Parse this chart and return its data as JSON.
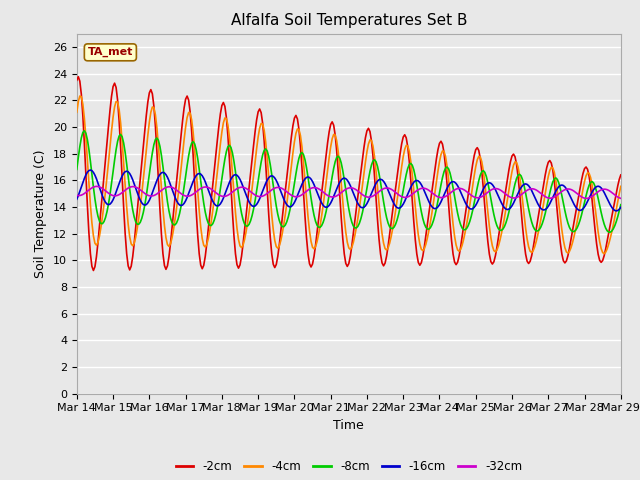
{
  "title": "Alfalfa Soil Temperatures Set B",
  "xlabel": "Time",
  "ylabel": "Soil Temperature (C)",
  "ylim": [
    0,
    27
  ],
  "yticks": [
    0,
    2,
    4,
    6,
    8,
    10,
    12,
    14,
    16,
    18,
    20,
    22,
    24,
    26
  ],
  "num_points": 361,
  "xtick_labels": [
    "Mar 14",
    "Mar 15",
    "Mar 16",
    "Mar 17",
    "Mar 18",
    "Mar 19",
    "Mar 20",
    "Mar 21",
    "Mar 22",
    "Mar 23",
    "Mar 24",
    "Mar 25",
    "Mar 26",
    "Mar 27",
    "Mar 28",
    "Mar 29"
  ],
  "legend_labels": [
    "-2cm",
    "-4cm",
    "-8cm",
    "-16cm",
    "-32cm"
  ],
  "legend_colors": [
    "#dd0000",
    "#ff8800",
    "#00cc00",
    "#0000cc",
    "#cc00cc"
  ],
  "annotation_text": "TA_met",
  "background_color": "#e8e8e8",
  "plot_bg_color": "#e8e8e8",
  "grid_color": "#ffffff",
  "title_fontsize": 11,
  "label_fontsize": 9,
  "tick_fontsize": 8
}
